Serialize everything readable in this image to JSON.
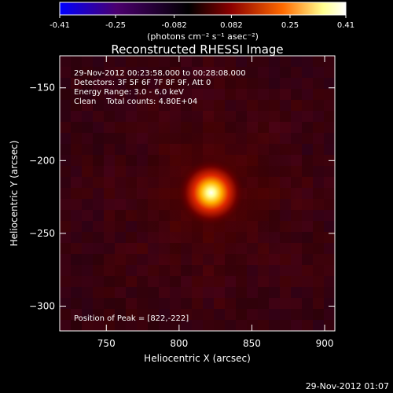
{
  "chart_data": {
    "type": "heatmap",
    "title": "Reconstructed RHESSI Image",
    "xlabel": "Heliocentric X (arcsec)",
    "ylabel": "Heliocentric Y (arcsec)",
    "xlim": [
      718,
      907
    ],
    "ylim": [
      -317,
      -128
    ],
    "x_ticks": [
      750,
      800,
      850,
      900
    ],
    "y_ticks": [
      -150,
      -200,
      -250,
      -300
    ],
    "colorbar": {
      "range": [
        -0.41,
        0.41
      ],
      "tick_values": [
        -0.41,
        -0.25,
        -0.082,
        0.082,
        0.25,
        0.41
      ],
      "tick_labels": [
        "-0.41",
        "-0.25",
        "-0.082",
        "0.082",
        "0.25",
        "0.41"
      ],
      "unit_label": "(photons cm⁻² s⁻¹ asec⁻²)",
      "colors": [
        "#0000ff",
        "#4b006e",
        "#000000",
        "#8c0000",
        "#ff6a00",
        "#ffff8f",
        "#ffffff"
      ]
    },
    "annotations": [
      "29-Nov-2012 00:23:58.000 to 00:28:08.000",
      "Detectors: 3F 5F 6F 7F 8F 9F, Att 0",
      "Energy Range: 3.0 - 6.0 keV",
      "Clean    Total counts: 4.80E+04"
    ],
    "peak": {
      "label": "Position of Peak = [822,-222]",
      "x": 822,
      "y": -222,
      "value": 0.41
    },
    "background_level": 0.04
  },
  "footer": {
    "timestamp": "29-Nov-2012 01:07"
  }
}
